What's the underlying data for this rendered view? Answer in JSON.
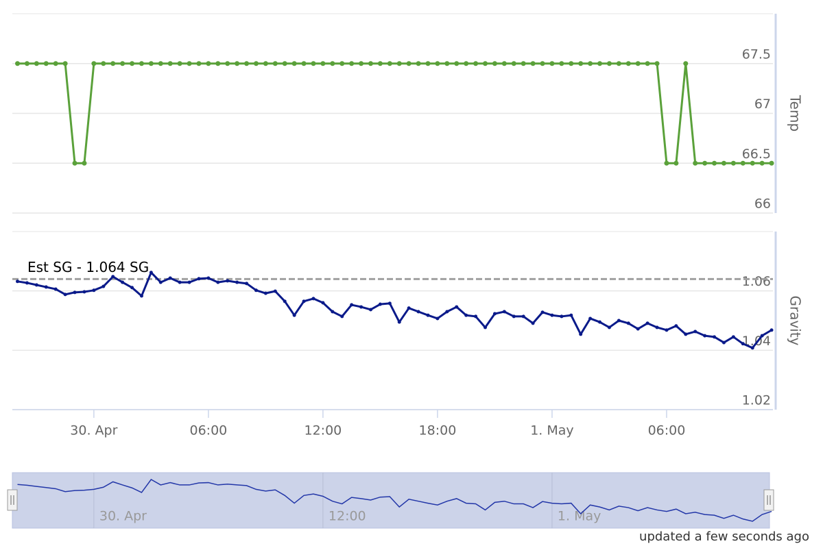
{
  "chart_data": [
    {
      "type": "line",
      "y_label": "Temp",
      "color": "#5aa13a",
      "x": [
        -4,
        -3.5,
        -3,
        -2.5,
        -2,
        -1.5,
        -1,
        -0.5,
        0,
        0.5,
        1,
        1.5,
        2,
        2.5,
        3,
        3.5,
        4,
        4.5,
        5,
        5.5,
        6,
        6.5,
        7,
        7.5,
        8,
        8.5,
        9,
        9.5,
        10,
        10.5,
        11,
        11.5,
        12,
        12.5,
        13,
        13.5,
        14,
        14.5,
        15,
        15.5,
        16,
        16.5,
        17,
        17.5,
        18,
        18.5,
        19,
        19.5,
        20,
        20.5,
        21,
        21.5,
        22,
        22.5,
        23,
        23.5,
        24,
        24.5,
        25,
        25.5,
        26,
        26.5,
        27,
        27.5,
        28,
        28.5,
        29,
        29.5,
        30,
        30.5,
        31,
        31.5,
        32,
        32.5,
        33,
        33.5,
        34,
        34.5,
        35,
        35.5
      ],
      "values": [
        67.5,
        67.5,
        67.5,
        67.5,
        67.5,
        67.5,
        66.5,
        66.5,
        67.5,
        67.5,
        67.5,
        67.5,
        67.5,
        67.5,
        67.5,
        67.5,
        67.5,
        67.5,
        67.5,
        67.5,
        67.5,
        67.5,
        67.5,
        67.5,
        67.5,
        67.5,
        67.5,
        67.5,
        67.5,
        67.5,
        67.5,
        67.5,
        67.5,
        67.5,
        67.5,
        67.5,
        67.5,
        67.5,
        67.5,
        67.5,
        67.5,
        67.5,
        67.5,
        67.5,
        67.5,
        67.5,
        67.5,
        67.5,
        67.5,
        67.5,
        67.5,
        67.5,
        67.5,
        67.5,
        67.5,
        67.5,
        67.5,
        67.5,
        67.5,
        67.5,
        67.5,
        67.5,
        67.5,
        67.5,
        67.5,
        67.5,
        67.5,
        67.5,
        66.5,
        66.5,
        67.5,
        66.5,
        66.5,
        66.5,
        66.5,
        66.5,
        66.5,
        66.5,
        66.5,
        66.5
      ],
      "xlim": [
        -4.27,
        35.57
      ],
      "ylim": [
        66,
        68
      ],
      "yticks": [
        66,
        66.5,
        67,
        67.5
      ]
    },
    {
      "type": "line",
      "y_label": "Gravity",
      "color": "#0a1a8a",
      "x": [
        -4,
        -3.5,
        -3,
        -2.5,
        -2,
        -1.5,
        -1,
        -0.5,
        0,
        0.5,
        1,
        1.5,
        2,
        2.5,
        3,
        3.5,
        4,
        4.5,
        5,
        5.5,
        6,
        6.5,
        7,
        7.5,
        8,
        8.5,
        9,
        9.5,
        10,
        10.5,
        11,
        11.5,
        12,
        12.5,
        13,
        13.5,
        14,
        14.5,
        15,
        15.5,
        16,
        16.5,
        17,
        17.5,
        18,
        18.5,
        19,
        19.5,
        20,
        20.5,
        21,
        21.5,
        22,
        22.5,
        23,
        23.5,
        24,
        24.5,
        25,
        25.5,
        26,
        26.5,
        27,
        27.5,
        28,
        28.5,
        29,
        29.5,
        30,
        30.5,
        31,
        31.5,
        32,
        32.5,
        33,
        33.5,
        34,
        34.5,
        35,
        35.5
      ],
      "values": [
        1.0632,
        1.0627,
        1.062,
        1.0613,
        1.0606,
        1.0588,
        1.0595,
        1.0597,
        1.0602,
        1.0615,
        1.0648,
        1.0629,
        1.0611,
        1.0583,
        1.0662,
        1.0629,
        1.0643,
        1.0629,
        1.0629,
        1.0641,
        1.0643,
        1.0629,
        1.0634,
        1.0629,
        1.0625,
        1.0602,
        1.0592,
        1.0599,
        1.0565,
        1.0518,
        1.0565,
        1.0574,
        1.056,
        1.053,
        1.0514,
        1.0553,
        1.0546,
        1.0537,
        1.0555,
        1.0558,
        1.0495,
        1.0542,
        1.053,
        1.0518,
        1.0507,
        1.053,
        1.0546,
        1.0518,
        1.0514,
        1.0477,
        1.0523,
        1.053,
        1.0514,
        1.0514,
        1.0491,
        1.0528,
        1.0518,
        1.0514,
        1.0518,
        1.0454,
        1.0507,
        1.0495,
        1.0477,
        1.05,
        1.0491,
        1.0472,
        1.0491,
        1.0477,
        1.0468,
        1.0482,
        1.0454,
        1.0463,
        1.0449,
        1.0445,
        1.0426,
        1.0445,
        1.0422,
        1.0408,
        1.0449,
        1.0468
      ],
      "xlim": [
        -4.27,
        35.57
      ],
      "ylim": [
        1.02,
        1.08
      ],
      "yticks": [
        1.02,
        1.04,
        1.06
      ],
      "xticks": [
        {
          "value": 0,
          "label": "30. Apr"
        },
        {
          "value": 6,
          "label": "06:00"
        },
        {
          "value": 12,
          "label": "12:00"
        },
        {
          "value": 18,
          "label": "18:00"
        },
        {
          "value": 24,
          "label": "1. May"
        },
        {
          "value": 30,
          "label": "06:00"
        }
      ],
      "plot_line": {
        "value": 1.064,
        "label": "Est SG - 1.064 SG"
      }
    }
  ],
  "navigator": {
    "xticks": [
      {
        "value": 0,
        "label": "30. Apr"
      },
      {
        "value": 12,
        "label": "12:00"
      },
      {
        "value": 24,
        "label": "1. May"
      }
    ]
  },
  "footer": "updated a few seconds ago"
}
